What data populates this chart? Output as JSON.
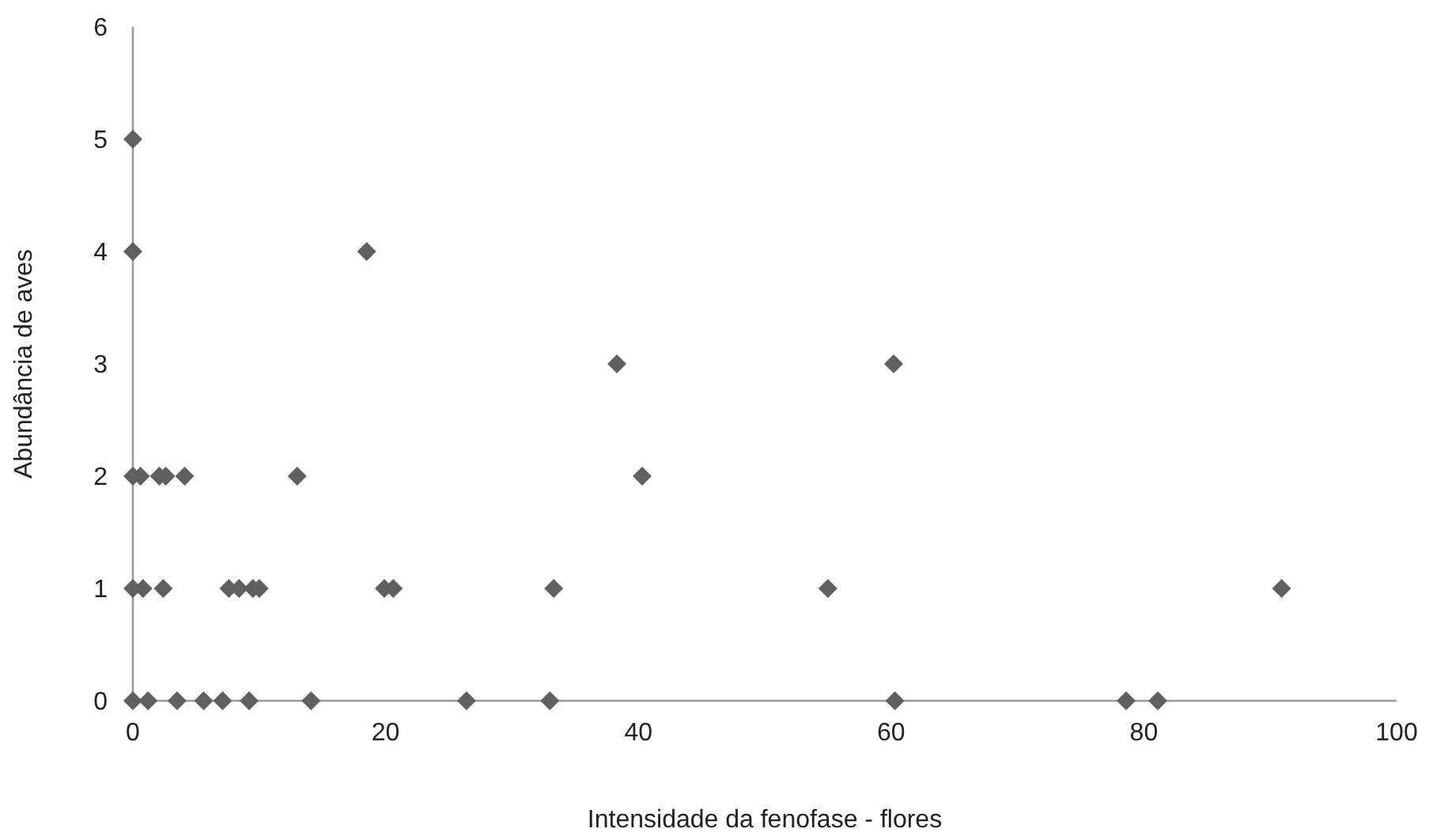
{
  "chart_data": {
    "type": "scatter",
    "xlabel": "Intensidade da fenofase - flores",
    "ylabel": "Abundância de aves",
    "xlim": [
      0,
      100
    ],
    "xticks": [
      0,
      20,
      40,
      60,
      80,
      100
    ],
    "ylim": [
      0,
      6
    ],
    "yticks": [
      0,
      1,
      2,
      3,
      4,
      5,
      6
    ],
    "grid": false,
    "marker": "diamond",
    "series": [
      {
        "color": "#606060",
        "x": [
          0,
          0,
          18.5,
          38.3,
          60.2,
          0,
          0.6,
          2.1,
          2.6,
          4.1,
          13,
          40.3,
          0,
          0.8,
          2.4,
          7.6,
          8.4,
          9.5,
          10,
          19.9,
          20.6,
          33.3,
          55,
          90.9,
          0,
          1.2,
          3.5,
          5.6,
          7.1,
          9.2,
          14.1,
          26.4,
          33,
          60.3,
          78.6,
          81.1
        ],
        "values": [
          5,
          4,
          4,
          3,
          3,
          2,
          2,
          2,
          2,
          2,
          2,
          2,
          1,
          1,
          1,
          1,
          1,
          1,
          1,
          1,
          1,
          1,
          1,
          1,
          0,
          0,
          0,
          0,
          0,
          0,
          0,
          0,
          0,
          0,
          0,
          0
        ]
      }
    ]
  }
}
